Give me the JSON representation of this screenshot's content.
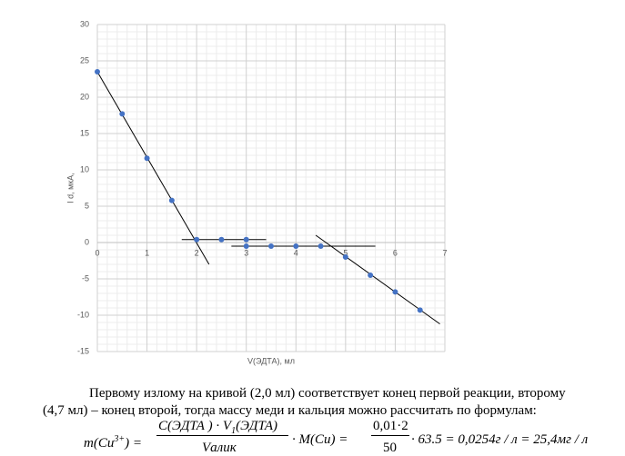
{
  "chart_data": {
    "type": "scatter",
    "x_label": "V(ЭДТА),  мл",
    "y_label": "I d, мкА,",
    "x": [
      0,
      0.5,
      1,
      1.5,
      2,
      2.5,
      3,
      3,
      3.5,
      4,
      4.5,
      5,
      5.5,
      6,
      6.5
    ],
    "values": [
      23.5,
      17.7,
      11.6,
      5.8,
      0.4,
      0.4,
      0.4,
      -0.5,
      -0.5,
      -0.5,
      -0.5,
      -2,
      -4.5,
      -6.8,
      -9.3
    ],
    "color": "#4472c4",
    "xlim": [
      0,
      7
    ],
    "ylim": [
      -15,
      30
    ],
    "xticks": [
      0,
      1,
      2,
      3,
      4,
      5,
      6,
      7
    ],
    "yticks": [
      -15,
      -10,
      -5,
      0,
      5,
      10,
      15,
      20,
      25,
      30
    ],
    "grid": true,
    "trend_lines": [
      {
        "x": [
          0,
          2.25
        ],
        "y": [
          23.5,
          -3
        ]
      },
      {
        "x": [
          1.7,
          3.4
        ],
        "y": [
          0.4,
          0.4
        ]
      },
      {
        "x": [
          2.7,
          5.6
        ],
        "y": [
          -0.5,
          -0.5
        ]
      },
      {
        "x": [
          4.4,
          6.9
        ],
        "y": [
          1,
          -11.2
        ]
      }
    ],
    "trend_color": "#000000"
  },
  "document": {
    "paragraph_line1": "Первому излому на кривой (2,0 мл) соответствует конец первой реакции, второму",
    "paragraph_line2": "(4,7 мл) – конец второй, тогда массу меди и кальция можно рассчитать по формулам:",
    "formula": {
      "lhs": "m(Cu",
      "lhs_sup": "3+",
      "lhs_close": ") =",
      "num1": "C(ЭДТА ) · V",
      "num1_sub": "1",
      "num1_end": "(ЭДТА)",
      "den1": "Vалик",
      "mid": "· M(Cu) =",
      "num2": "0,01·2",
      "den2": "50",
      "rest": "· 63.5 = 0,0254г / л = 25,4мг / л"
    }
  }
}
